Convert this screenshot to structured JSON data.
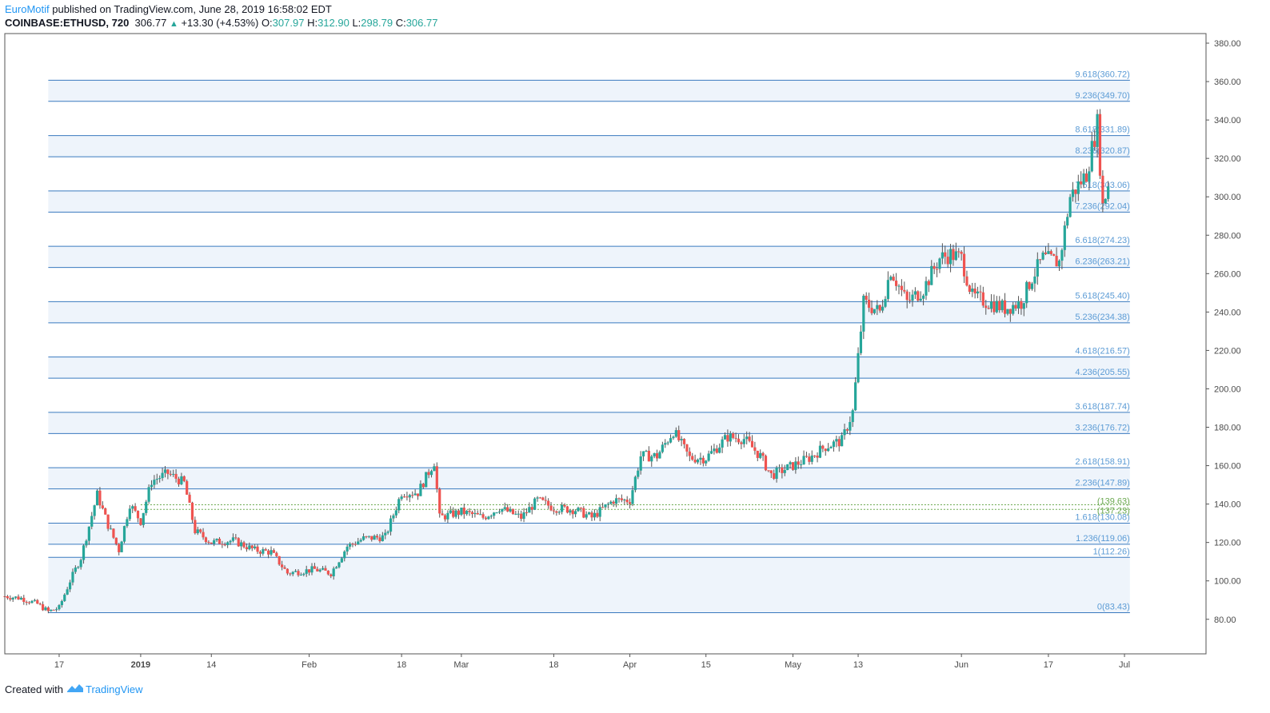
{
  "header": {
    "author": "EuroMotif",
    "published_text": "published on TradingView.com, June 28, 2019 16:58:02 EDT",
    "symbol": "COINBASE:ETHUSD, 720",
    "last": "306.77",
    "change": "+13.30 (+4.53%)",
    "o_label": "O:",
    "o_value": "307.97",
    "h_label": "H:",
    "h_value": "312.90",
    "l_label": "L:",
    "l_value": "298.79",
    "c_label": "C:",
    "c_value": "306.77"
  },
  "footer": {
    "created_with": "Created with",
    "brand": "TradingView"
  },
  "colors": {
    "up": "#26a69a",
    "down": "#ef5350",
    "fib_line": "#3a7abf",
    "fib_text": "#5b9bd5",
    "band": "#eef4fb",
    "axis_text": "#4a4a4a",
    "green_level": "#6aa84f"
  },
  "chart_data": {
    "type": "candlestick",
    "ylim": [
      62,
      385
    ],
    "y_ticks": [
      {
        "value": 80,
        "label": "80.00"
      },
      {
        "value": 100,
        "label": "100.00"
      },
      {
        "value": 120,
        "label": "120.00"
      },
      {
        "value": 140,
        "label": "140.00"
      },
      {
        "value": 160,
        "label": "160.00"
      },
      {
        "value": 180,
        "label": "180.00"
      },
      {
        "value": 200,
        "label": "200.00"
      },
      {
        "value": 220,
        "label": "220.00"
      },
      {
        "value": 240,
        "label": "240.00"
      },
      {
        "value": 260,
        "label": "260.00"
      },
      {
        "value": 280,
        "label": "280.00"
      },
      {
        "value": 300,
        "label": "300.00"
      },
      {
        "value": 320,
        "label": "320.00"
      },
      {
        "value": 340,
        "label": "340.00"
      },
      {
        "value": 360,
        "label": "360.00"
      },
      {
        "value": 380,
        "label": "380.00"
      }
    ],
    "x_ticks": [
      {
        "date": "2018-12-17",
        "label": "17",
        "bold": false
      },
      {
        "date": "2019-01-01",
        "label": "2019",
        "bold": true
      },
      {
        "date": "2019-01-14",
        "label": "14",
        "bold": false
      },
      {
        "date": "2019-02-01",
        "label": "Feb",
        "bold": false
      },
      {
        "date": "2019-02-18",
        "label": "18",
        "bold": false
      },
      {
        "date": "2019-03-01",
        "label": "Mar",
        "bold": false
      },
      {
        "date": "2019-03-18",
        "label": "18",
        "bold": false
      },
      {
        "date": "2019-04-01",
        "label": "Apr",
        "bold": false
      },
      {
        "date": "2019-04-15",
        "label": "15",
        "bold": false
      },
      {
        "date": "2019-05-01",
        "label": "May",
        "bold": false
      },
      {
        "date": "2019-05-13",
        "label": "13",
        "bold": false
      },
      {
        "date": "2019-06-01",
        "label": "Jun",
        "bold": false
      },
      {
        "date": "2019-06-17",
        "label": "17",
        "bold": false
      },
      {
        "date": "2019-07-01",
        "label": "Jul",
        "bold": false
      }
    ],
    "x_range": [
      "2018-12-07",
      "2019-07-16"
    ],
    "fib_levels": [
      {
        "label": "9.618(360.72)",
        "value": 360.72
      },
      {
        "label": "9.236(349.70)",
        "value": 349.7
      },
      {
        "label": "8.618(331.89)",
        "value": 331.89
      },
      {
        "label": "8.236(320.87)",
        "value": 320.87
      },
      {
        "label": "7.618(303.06)",
        "value": 303.06
      },
      {
        "label": "7.236(292.04)",
        "value": 292.04
      },
      {
        "label": "6.618(274.23)",
        "value": 274.23
      },
      {
        "label": "6.236(263.21)",
        "value": 263.21
      },
      {
        "label": "5.618(245.40)",
        "value": 245.4
      },
      {
        "label": "5.236(234.38)",
        "value": 234.38
      },
      {
        "label": "4.618(216.57)",
        "value": 216.57
      },
      {
        "label": "4.236(205.55)",
        "value": 205.55
      },
      {
        "label": "3.618(187.74)",
        "value": 187.74
      },
      {
        "label": "3.236(176.72)",
        "value": 176.72
      },
      {
        "label": "2.618(158.91)",
        "value": 158.91
      },
      {
        "label": "2.236(147.89)",
        "value": 147.89
      },
      {
        "label": "1.618(130.08)",
        "value": 130.08
      },
      {
        "label": "1.236(119.06)",
        "value": 119.06
      },
      {
        "label": "1(112.26)",
        "value": 112.26
      },
      {
        "label": "0(83.43)",
        "value": 83.43
      }
    ],
    "fib_start_date": "2018-12-15",
    "fib_end_date": "2019-07-02",
    "extra_levels": [
      {
        "label": "(139.63)",
        "value": 139.63,
        "start_date": "2019-01-01"
      },
      {
        "label": "(137.23)",
        "value": 137.23,
        "start_date": "2019-01-01"
      }
    ],
    "closes": [
      {
        "date": "2018-12-07",
        "close": 92
      },
      {
        "date": "2018-12-10",
        "close": 91
      },
      {
        "date": "2018-12-13",
        "close": 88
      },
      {
        "date": "2018-12-15",
        "close": 84
      },
      {
        "date": "2018-12-17",
        "close": 86
      },
      {
        "date": "2018-12-19",
        "close": 100
      },
      {
        "date": "2018-12-21",
        "close": 112
      },
      {
        "date": "2018-12-24",
        "close": 145
      },
      {
        "date": "2018-12-26",
        "close": 129
      },
      {
        "date": "2018-12-28",
        "close": 116
      },
      {
        "date": "2018-12-30",
        "close": 140
      },
      {
        "date": "2019-01-01",
        "close": 131
      },
      {
        "date": "2019-01-03",
        "close": 152
      },
      {
        "date": "2019-01-06",
        "close": 156
      },
      {
        "date": "2019-01-09",
        "close": 151
      },
      {
        "date": "2019-01-11",
        "close": 126
      },
      {
        "date": "2019-01-14",
        "close": 120
      },
      {
        "date": "2019-01-18",
        "close": 121
      },
      {
        "date": "2019-01-22",
        "close": 116
      },
      {
        "date": "2019-01-25",
        "close": 115
      },
      {
        "date": "2019-01-28",
        "close": 104
      },
      {
        "date": "2019-02-02",
        "close": 106
      },
      {
        "date": "2019-02-05",
        "close": 104
      },
      {
        "date": "2019-02-08",
        "close": 118
      },
      {
        "date": "2019-02-11",
        "close": 122
      },
      {
        "date": "2019-02-15",
        "close": 123
      },
      {
        "date": "2019-02-18",
        "close": 146
      },
      {
        "date": "2019-02-21",
        "close": 146
      },
      {
        "date": "2019-02-24",
        "close": 162
      },
      {
        "date": "2019-02-25",
        "close": 133
      },
      {
        "date": "2019-03-01",
        "close": 136
      },
      {
        "date": "2019-03-05",
        "close": 133
      },
      {
        "date": "2019-03-08",
        "close": 138
      },
      {
        "date": "2019-03-12",
        "close": 133
      },
      {
        "date": "2019-03-15",
        "close": 142
      },
      {
        "date": "2019-03-18",
        "close": 138
      },
      {
        "date": "2019-03-22",
        "close": 137
      },
      {
        "date": "2019-03-25",
        "close": 133
      },
      {
        "date": "2019-03-29",
        "close": 142
      },
      {
        "date": "2019-04-01",
        "close": 142
      },
      {
        "date": "2019-04-03",
        "close": 165
      },
      {
        "date": "2019-04-06",
        "close": 165
      },
      {
        "date": "2019-04-09",
        "close": 178
      },
      {
        "date": "2019-04-12",
        "close": 164
      },
      {
        "date": "2019-04-15",
        "close": 164
      },
      {
        "date": "2019-04-19",
        "close": 175
      },
      {
        "date": "2019-04-22",
        "close": 174
      },
      {
        "date": "2019-04-25",
        "close": 165
      },
      {
        "date": "2019-04-27",
        "close": 155
      },
      {
        "date": "2019-05-01",
        "close": 160
      },
      {
        "date": "2019-05-04",
        "close": 164
      },
      {
        "date": "2019-05-07",
        "close": 170
      },
      {
        "date": "2019-05-10",
        "close": 173
      },
      {
        "date": "2019-05-12",
        "close": 188
      },
      {
        "date": "2019-05-14",
        "close": 245
      },
      {
        "date": "2019-05-17",
        "close": 240
      },
      {
        "date": "2019-05-19",
        "close": 262
      },
      {
        "date": "2019-05-22",
        "close": 245
      },
      {
        "date": "2019-05-25",
        "close": 252
      },
      {
        "date": "2019-05-28",
        "close": 268
      },
      {
        "date": "2019-05-30",
        "close": 270
      },
      {
        "date": "2019-06-01",
        "close": 268
      },
      {
        "date": "2019-06-03",
        "close": 248
      },
      {
        "date": "2019-06-06",
        "close": 245
      },
      {
        "date": "2019-06-09",
        "close": 242
      },
      {
        "date": "2019-06-12",
        "close": 245
      },
      {
        "date": "2019-06-14",
        "close": 258
      },
      {
        "date": "2019-06-16",
        "close": 268
      },
      {
        "date": "2019-06-19",
        "close": 266
      },
      {
        "date": "2019-06-21",
        "close": 300
      },
      {
        "date": "2019-06-24",
        "close": 312
      },
      {
        "date": "2019-06-26",
        "close": 338
      },
      {
        "date": "2019-06-27",
        "close": 295
      },
      {
        "date": "2019-06-28",
        "close": 306.77
      }
    ]
  }
}
